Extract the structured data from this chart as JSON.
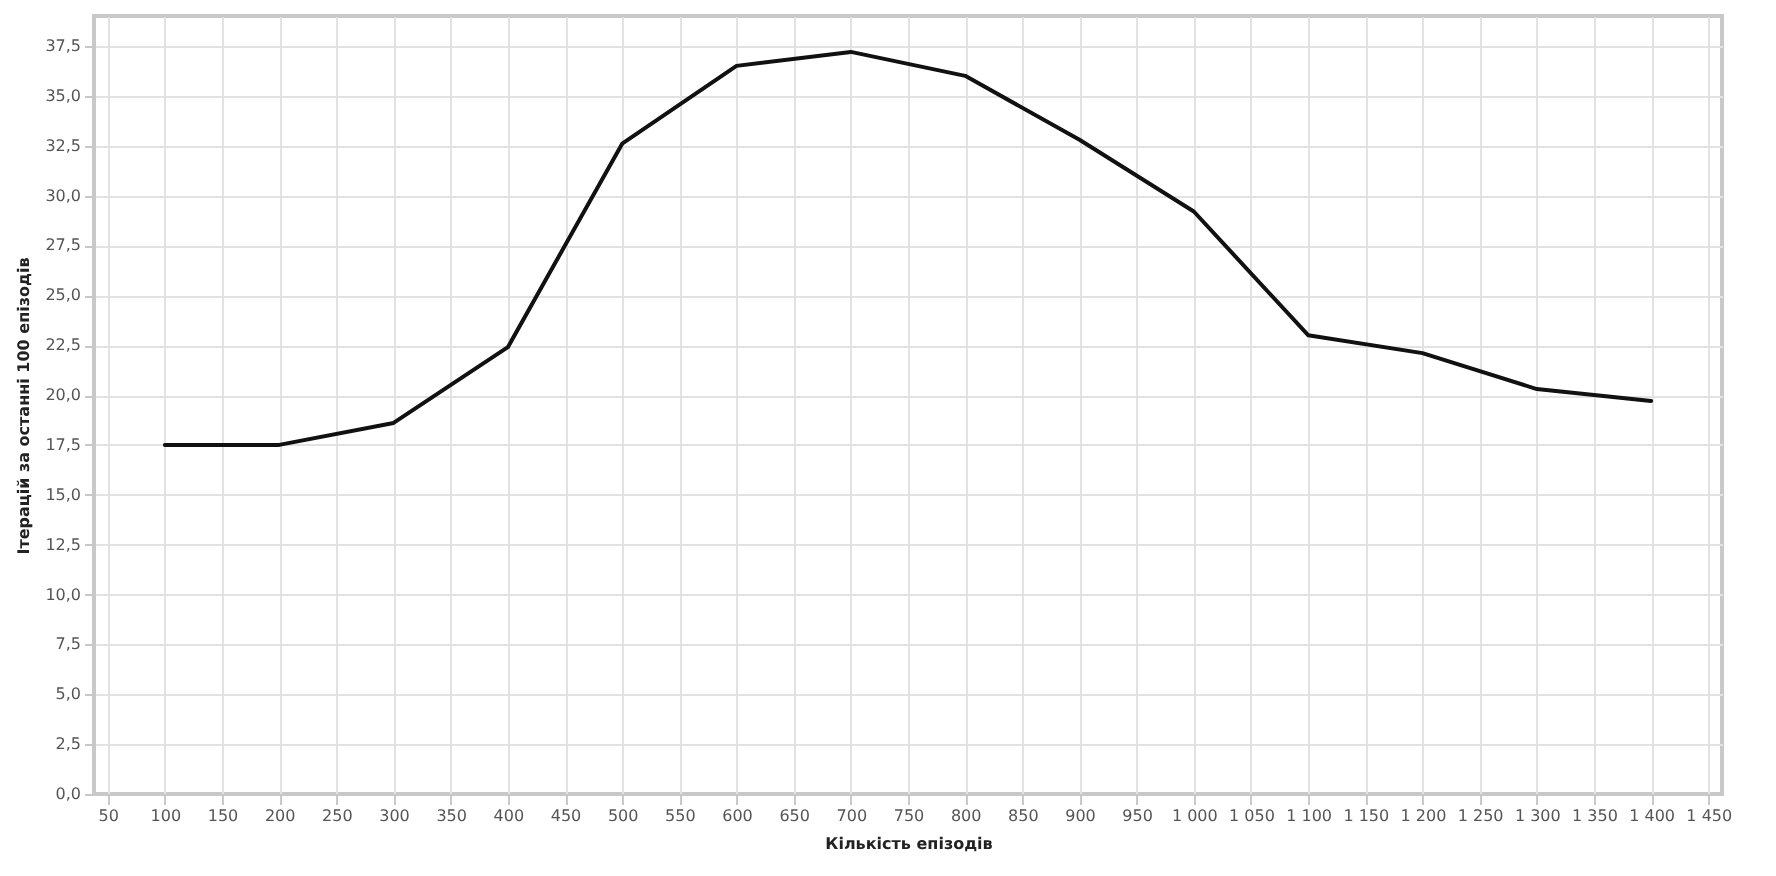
{
  "chart_data": {
    "type": "line",
    "xlabel": "Кількість епізодів",
    "ylabel": "Ітерацій за останні 100 епізодів",
    "x": [
      100,
      200,
      300,
      400,
      500,
      600,
      700,
      800,
      900,
      1000,
      1100,
      1200,
      1300,
      1400
    ],
    "series": [
      {
        "color": "#111111",
        "values": [
          17.5,
          17.5,
          18.6,
          22.4,
          32.6,
          36.5,
          37.2,
          36.0,
          32.8,
          29.2,
          23.0,
          22.1,
          20.3,
          19.7
        ]
      }
    ],
    "xlim": [
      38,
      1462
    ],
    "ylim": [
      0,
      39
    ],
    "xticks": [
      50,
      100,
      150,
      200,
      250,
      300,
      350,
      400,
      450,
      500,
      550,
      600,
      650,
      700,
      750,
      800,
      850,
      900,
      950,
      {
        "value": 1000,
        "label": "1 000"
      },
      {
        "value": 1050,
        "label": "1 050"
      },
      {
        "value": 1100,
        "label": "1 100"
      },
      {
        "value": 1150,
        "label": "1 150"
      },
      {
        "value": 1200,
        "label": "1 200"
      },
      {
        "value": 1250,
        "label": "1 250"
      },
      {
        "value": 1300,
        "label": "1 300"
      },
      {
        "value": 1350,
        "label": "1 350"
      },
      {
        "value": 1400,
        "label": "1 400"
      },
      {
        "value": 1450,
        "label": "1 450"
      }
    ],
    "yticks": [
      {
        "value": 0,
        "label": "0,0"
      },
      {
        "value": 2.5,
        "label": "2,5"
      },
      {
        "value": 5,
        "label": "5,0"
      },
      {
        "value": 7.5,
        "label": "7,5"
      },
      {
        "value": 10,
        "label": "10,0"
      },
      {
        "value": 12.5,
        "label": "12,5"
      },
      {
        "value": 15,
        "label": "15,0"
      },
      {
        "value": 17.5,
        "label": "17,5"
      },
      {
        "value": 20,
        "label": "20,0"
      },
      {
        "value": 22.5,
        "label": "22,5"
      },
      {
        "value": 25,
        "label": "25,0"
      },
      {
        "value": 27.5,
        "label": "27,5"
      },
      {
        "value": 30,
        "label": "30,0"
      },
      {
        "value": 32.5,
        "label": "32,5"
      },
      {
        "value": 35,
        "label": "35,0"
      },
      {
        "value": 37.5,
        "label": "37,5"
      }
    ],
    "grid": true,
    "line_style": "solid",
    "marker": "none"
  }
}
